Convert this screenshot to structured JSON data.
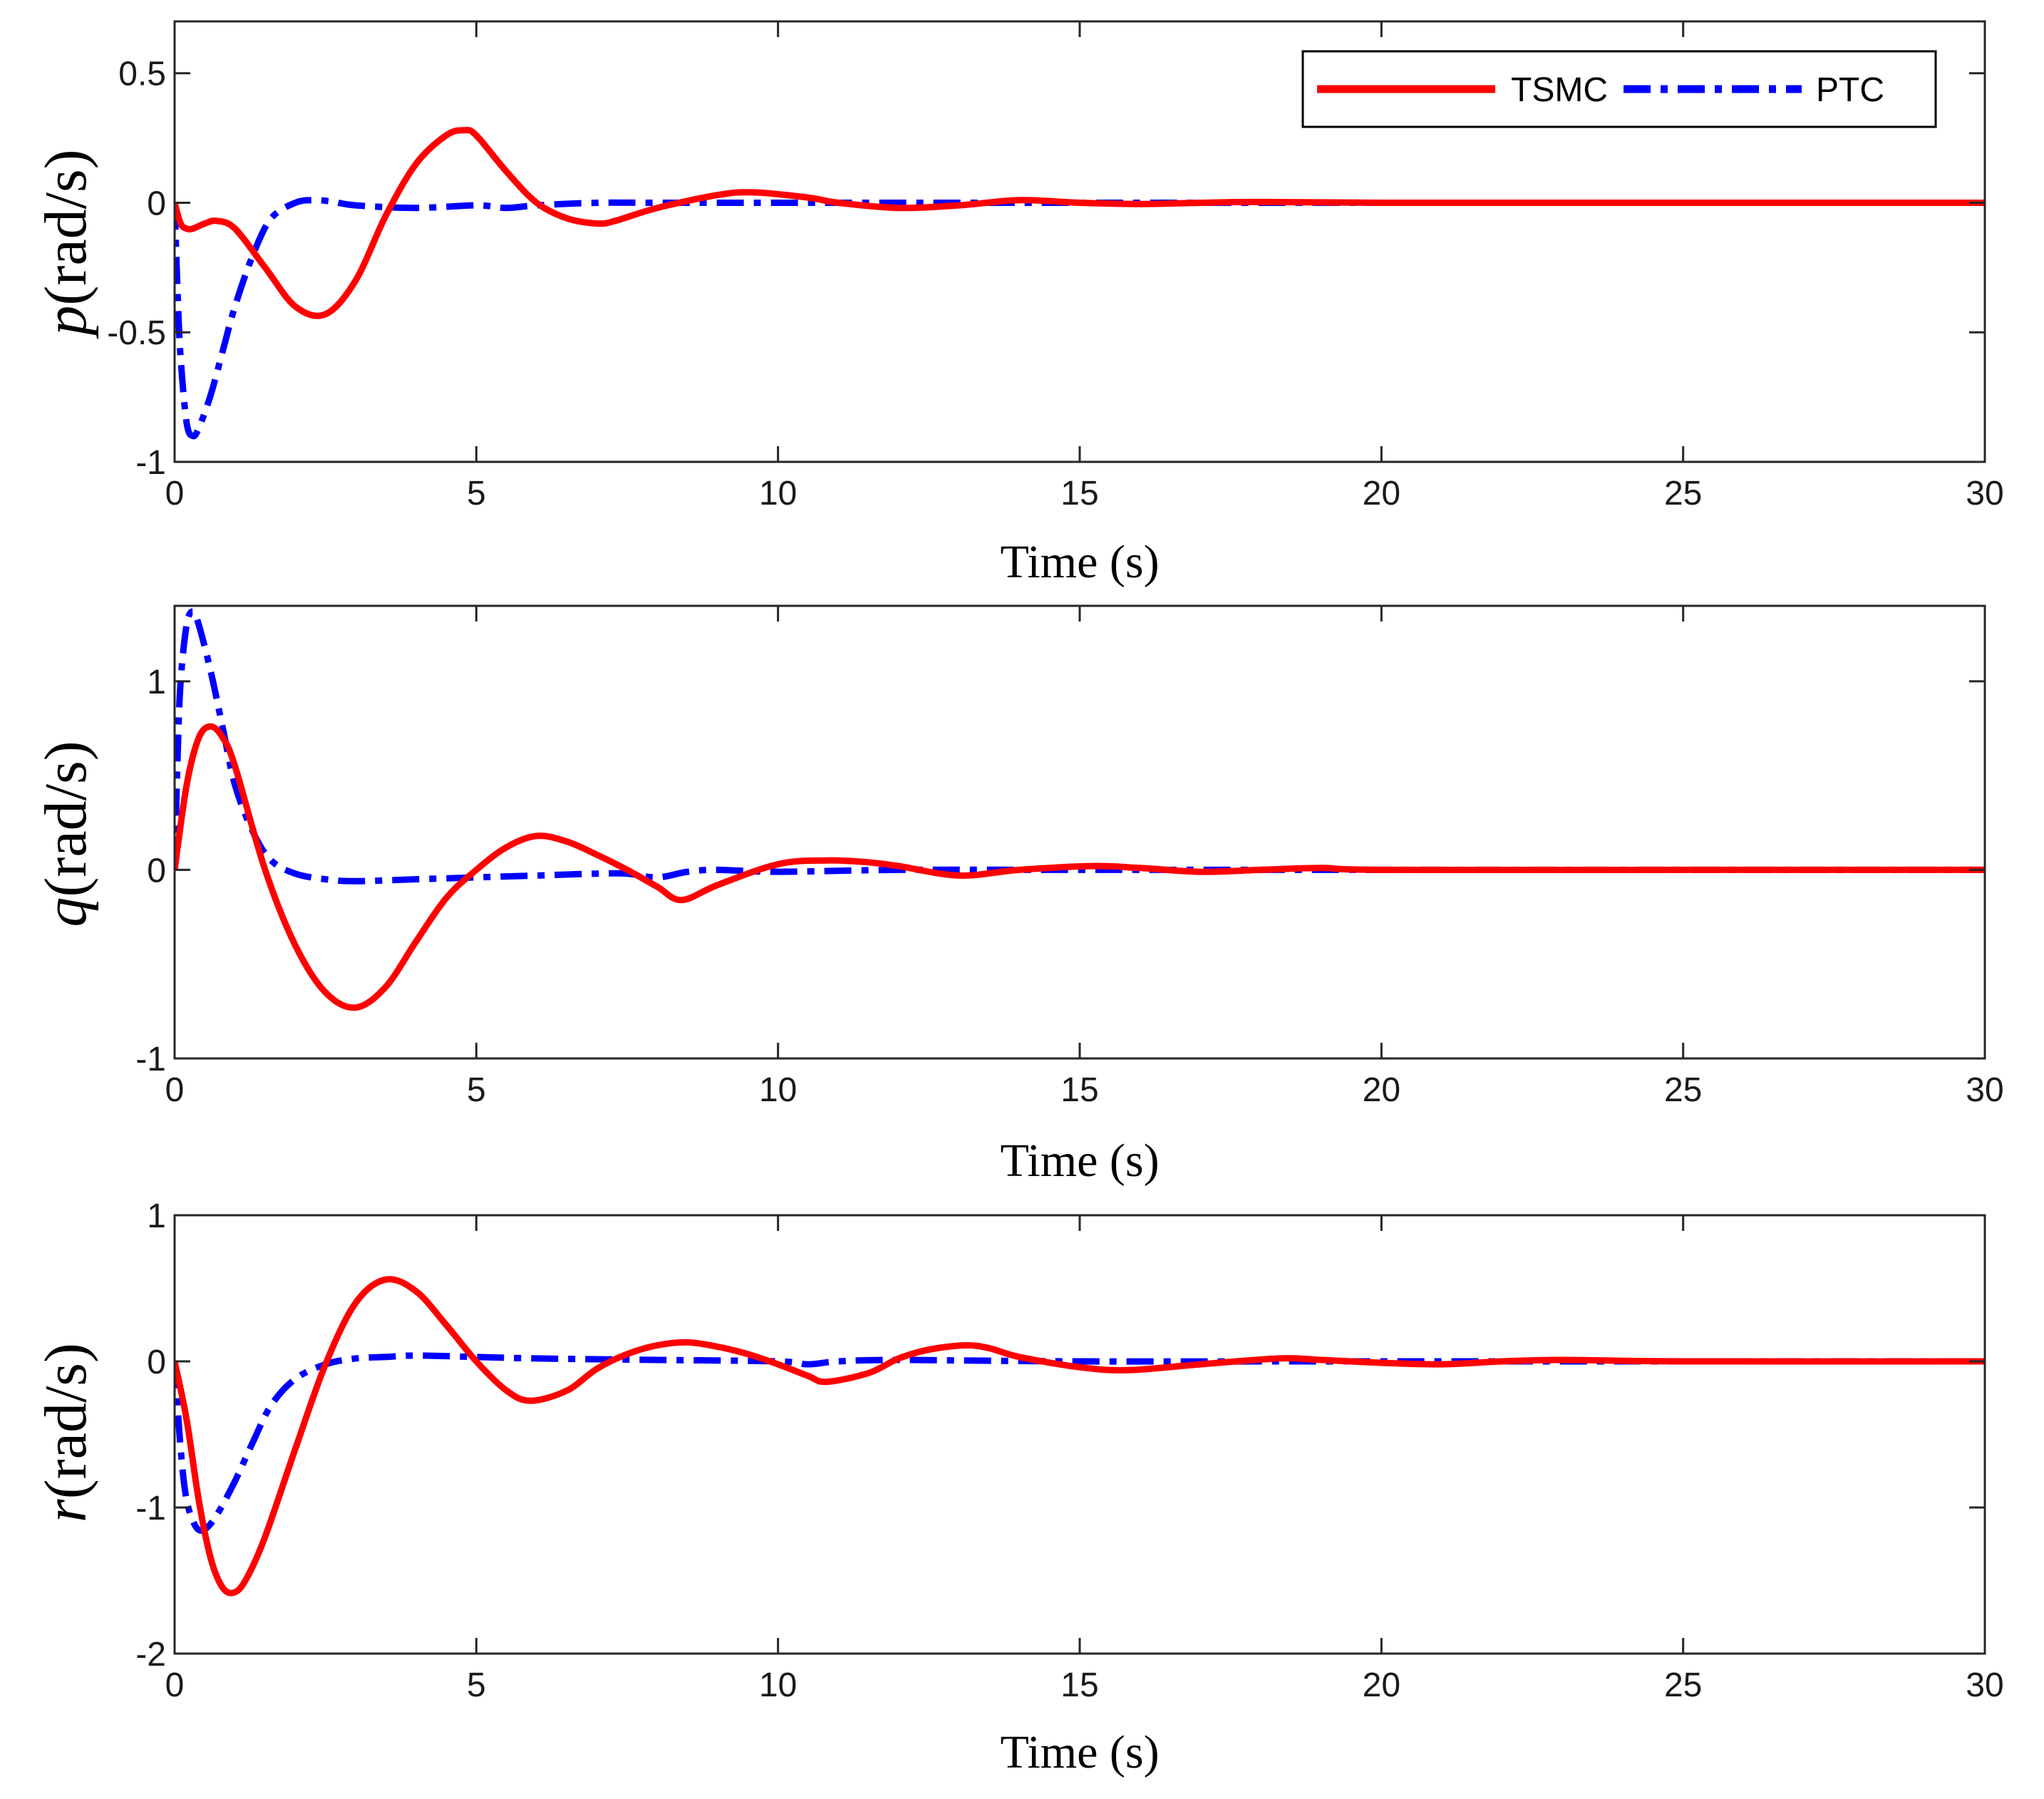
{
  "chart_data": [
    {
      "type": "line",
      "title": "",
      "xlabel": "Time (s)",
      "ylabel_var": "p",
      "ylabel_unit": "(rad/s)",
      "xlim": [
        0,
        30
      ],
      "ylim": [
        -1,
        0.7
      ],
      "xticks": [
        0,
        5,
        10,
        15,
        20,
        25,
        30
      ],
      "xtick_labels": [
        "0",
        "5",
        "10",
        "15",
        "20",
        "25",
        "30"
      ],
      "yticks": [
        -1,
        -0.5,
        0,
        0.5
      ],
      "ytick_labels": [
        "-1",
        "-0.5",
        "0",
        "0.5"
      ],
      "grid": false,
      "legend": {
        "position": "top-right",
        "entries": [
          "TSMC",
          "PTC"
        ]
      },
      "series": [
        {
          "name": "TSMC",
          "color": "#ff0000",
          "style": "solid",
          "x": [
            0,
            0.1,
            0.2,
            0.3,
            0.5,
            0.7,
            1.0,
            1.5,
            2.0,
            2.5,
            3.0,
            3.5,
            4.0,
            4.5,
            4.8,
            5.0,
            5.5,
            6.0,
            6.5,
            7.0,
            7.3,
            8.0,
            9.0,
            9.6,
            10.5,
            11.0,
            12.0,
            13.0,
            14.0,
            15.0,
            16.0,
            17.0,
            18.0,
            20.0,
            25.0,
            30.0
          ],
          "y": [
            0,
            -0.08,
            -0.1,
            -0.1,
            -0.08,
            -0.07,
            -0.1,
            -0.25,
            -0.4,
            -0.43,
            -0.3,
            -0.05,
            0.15,
            0.26,
            0.28,
            0.26,
            0.12,
            0.0,
            -0.06,
            -0.08,
            -0.07,
            -0.02,
            0.03,
            0.04,
            0.02,
            0.0,
            -0.02,
            -0.01,
            0.01,
            0.0,
            -0.005,
            0.0,
            0.003,
            0.0,
            0.0,
            0.0
          ]
        },
        {
          "name": "PTC",
          "color": "#0000ff",
          "style": "dashdot",
          "x": [
            0,
            0.05,
            0.1,
            0.2,
            0.3,
            0.4,
            0.6,
            0.8,
            1.0,
            1.3,
            1.6,
            2.0,
            2.3,
            2.6,
            3.0,
            4.0,
            5.0,
            5.5,
            6.0,
            7.0,
            8.0,
            10.0,
            15.0,
            20.0,
            30.0
          ],
          "y": [
            0,
            -0.35,
            -0.6,
            -0.85,
            -0.9,
            -0.87,
            -0.74,
            -0.57,
            -0.4,
            -0.2,
            -0.06,
            0.0,
            0.01,
            0.005,
            -0.01,
            -0.02,
            -0.01,
            -0.02,
            -0.01,
            0.0,
            0.0,
            0.0,
            0.0,
            0.0,
            0.0
          ]
        }
      ]
    },
    {
      "type": "line",
      "title": "",
      "xlabel": "Time (s)",
      "ylabel_var": "q",
      "ylabel_unit": "(rad/s)",
      "xlim": [
        0,
        30
      ],
      "ylim": [
        -1,
        1.4
      ],
      "xticks": [
        0,
        5,
        10,
        15,
        20,
        25,
        30
      ],
      "xtick_labels": [
        "0",
        "5",
        "10",
        "15",
        "20",
        "25",
        "30"
      ],
      "yticks": [
        -1,
        0,
        1
      ],
      "ytick_labels": [
        "-1",
        "0",
        "1"
      ],
      "grid": false,
      "legend": null,
      "series": [
        {
          "name": "TSMC",
          "color": "#ff0000",
          "style": "solid",
          "x": [
            0,
            0.2,
            0.4,
            0.6,
            0.8,
            1.0,
            1.5,
            2.0,
            2.5,
            3.0,
            3.5,
            4.0,
            4.5,
            5.0,
            5.5,
            6.0,
            6.5,
            7.0,
            7.5,
            8.0,
            8.4,
            9.0,
            10.0,
            10.8,
            11.5,
            12.0,
            13.0,
            14.0,
            15.2,
            16.0,
            17.0,
            18.0,
            19.0,
            20.0,
            25.0,
            30.0
          ],
          "y": [
            0,
            0.45,
            0.7,
            0.76,
            0.7,
            0.55,
            0.0,
            -0.4,
            -0.65,
            -0.73,
            -0.62,
            -0.38,
            -0.15,
            0.0,
            0.12,
            0.18,
            0.15,
            0.08,
            0.0,
            -0.09,
            -0.16,
            -0.08,
            0.03,
            0.05,
            0.04,
            0.02,
            -0.03,
            0.0,
            0.02,
            0.01,
            -0.01,
            0.0,
            0.01,
            0.0,
            0.0,
            0.0
          ]
        },
        {
          "name": "PTC",
          "color": "#0000ff",
          "style": "dashdot",
          "x": [
            0,
            0.05,
            0.1,
            0.2,
            0.3,
            0.4,
            0.6,
            0.8,
            1.0,
            1.3,
            1.6,
            2.0,
            2.5,
            3.0,
            4.0,
            5.0,
            6.0,
            7.0,
            7.5,
            8.0,
            8.5,
            9.0,
            10.0,
            12.0,
            15.0,
            20.0,
            30.0
          ],
          "y": [
            0,
            0.6,
            1.0,
            1.3,
            1.37,
            1.3,
            1.05,
            0.75,
            0.45,
            0.2,
            0.05,
            -0.02,
            -0.05,
            -0.06,
            -0.05,
            -0.04,
            -0.03,
            -0.02,
            -0.02,
            -0.04,
            -0.01,
            0.0,
            -0.01,
            0.0,
            0.0,
            0.0,
            0.0
          ]
        }
      ]
    },
    {
      "type": "line",
      "title": "",
      "xlabel": "Time (s)",
      "ylabel_var": "r",
      "ylabel_unit": "(rad/s)",
      "xlim": [
        0,
        30
      ],
      "ylim": [
        -2,
        1
      ],
      "xticks": [
        0,
        5,
        10,
        15,
        20,
        25,
        30
      ],
      "xtick_labels": [
        "0",
        "5",
        "10",
        "15",
        "20",
        "25",
        "30"
      ],
      "yticks": [
        -2,
        -1,
        0,
        1
      ],
      "ytick_labels": [
        "-2",
        "-1",
        "0",
        "1"
      ],
      "grid": false,
      "legend": null,
      "series": [
        {
          "name": "TSMC",
          "color": "#ff0000",
          "style": "solid",
          "x": [
            0,
            0.2,
            0.4,
            0.6,
            0.8,
            1.0,
            1.2,
            1.5,
            2.0,
            2.5,
            3.0,
            3.5,
            4.0,
            4.5,
            5.0,
            5.5,
            5.9,
            6.5,
            7.0,
            7.5,
            8.0,
            8.5,
            9.0,
            9.5,
            10.0,
            10.5,
            10.8,
            11.5,
            12.0,
            12.5,
            13.1,
            13.5,
            14.0,
            15.0,
            15.8,
            17.0,
            18.3,
            19.0,
            20.0,
            21.0,
            22.0,
            23.0,
            25.0,
            30.0
          ],
          "y": [
            0,
            -0.4,
            -0.95,
            -1.35,
            -1.55,
            -1.58,
            -1.48,
            -1.2,
            -0.6,
            -0.02,
            0.4,
            0.56,
            0.48,
            0.25,
            0.0,
            -0.2,
            -0.27,
            -0.2,
            -0.05,
            0.05,
            0.11,
            0.13,
            0.1,
            0.05,
            -0.02,
            -0.1,
            -0.14,
            -0.08,
            0.02,
            0.08,
            0.11,
            0.09,
            0.03,
            -0.04,
            -0.06,
            -0.02,
            0.02,
            0.01,
            -0.01,
            -0.02,
            0.0,
            0.01,
            0.0,
            0.0
          ]
        },
        {
          "name": "PTC",
          "color": "#0000ff",
          "style": "dashdot",
          "x": [
            0,
            0.1,
            0.2,
            0.35,
            0.5,
            0.7,
            1.0,
            1.3,
            1.6,
            2.0,
            2.5,
            3.0,
            3.5,
            4.0,
            5.0,
            6.0,
            8.0,
            10.0,
            10.5,
            11.0,
            12.0,
            15.0,
            20.0,
            30.0
          ],
          "y": [
            0,
            -0.6,
            -0.95,
            -1.13,
            -1.15,
            -1.05,
            -0.82,
            -0.55,
            -0.3,
            -0.12,
            -0.02,
            0.02,
            0.03,
            0.04,
            0.03,
            0.02,
            0.01,
            0.0,
            -0.02,
            0.0,
            0.01,
            0.0,
            0.0,
            0.0
          ]
        }
      ]
    }
  ]
}
